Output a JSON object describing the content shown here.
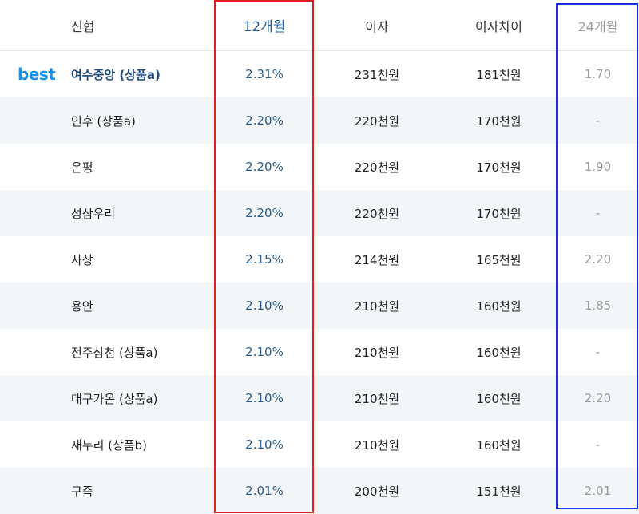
{
  "headers": {
    "name": "신협",
    "rate12": "12개월",
    "interest": "이자",
    "interest_diff": "이자차이",
    "rate24": "24개월"
  },
  "best_label": "best",
  "rows": [
    {
      "name": "여수중앙 (상품a)",
      "rate12": "2.31%",
      "interest": "231천원",
      "diff": "181천원",
      "rate24": "1.70",
      "best": true
    },
    {
      "name": "인후 (상품a)",
      "rate12": "2.20%",
      "interest": "220천원",
      "diff": "170천원",
      "rate24": "-"
    },
    {
      "name": "은평",
      "rate12": "2.20%",
      "interest": "220천원",
      "diff": "170천원",
      "rate24": "1.90"
    },
    {
      "name": "성삼우리",
      "rate12": "2.20%",
      "interest": "220천원",
      "diff": "170천원",
      "rate24": "-"
    },
    {
      "name": "사상",
      "rate12": "2.15%",
      "interest": "214천원",
      "diff": "165천원",
      "rate24": "2.20"
    },
    {
      "name": "용안",
      "rate12": "2.10%",
      "interest": "210천원",
      "diff": "160천원",
      "rate24": "1.85"
    },
    {
      "name": "전주삼천 (상품a)",
      "rate12": "2.10%",
      "interest": "210천원",
      "diff": "160천원",
      "rate24": "-"
    },
    {
      "name": "대구가온 (상품a)",
      "rate12": "2.10%",
      "interest": "210천원",
      "diff": "160천원",
      "rate24": "2.20"
    },
    {
      "name": "새누리 (상품b)",
      "rate12": "2.10%",
      "interest": "210천원",
      "diff": "160천원",
      "rate24": "-"
    },
    {
      "name": "구즉",
      "rate12": "2.01%",
      "interest": "200천원",
      "diff": "151천원",
      "rate24": "2.01"
    }
  ],
  "colors": {
    "highlight_12m": "#e02020",
    "highlight_24m": "#1a2fe0",
    "best_badge": "#1d8fe0"
  }
}
